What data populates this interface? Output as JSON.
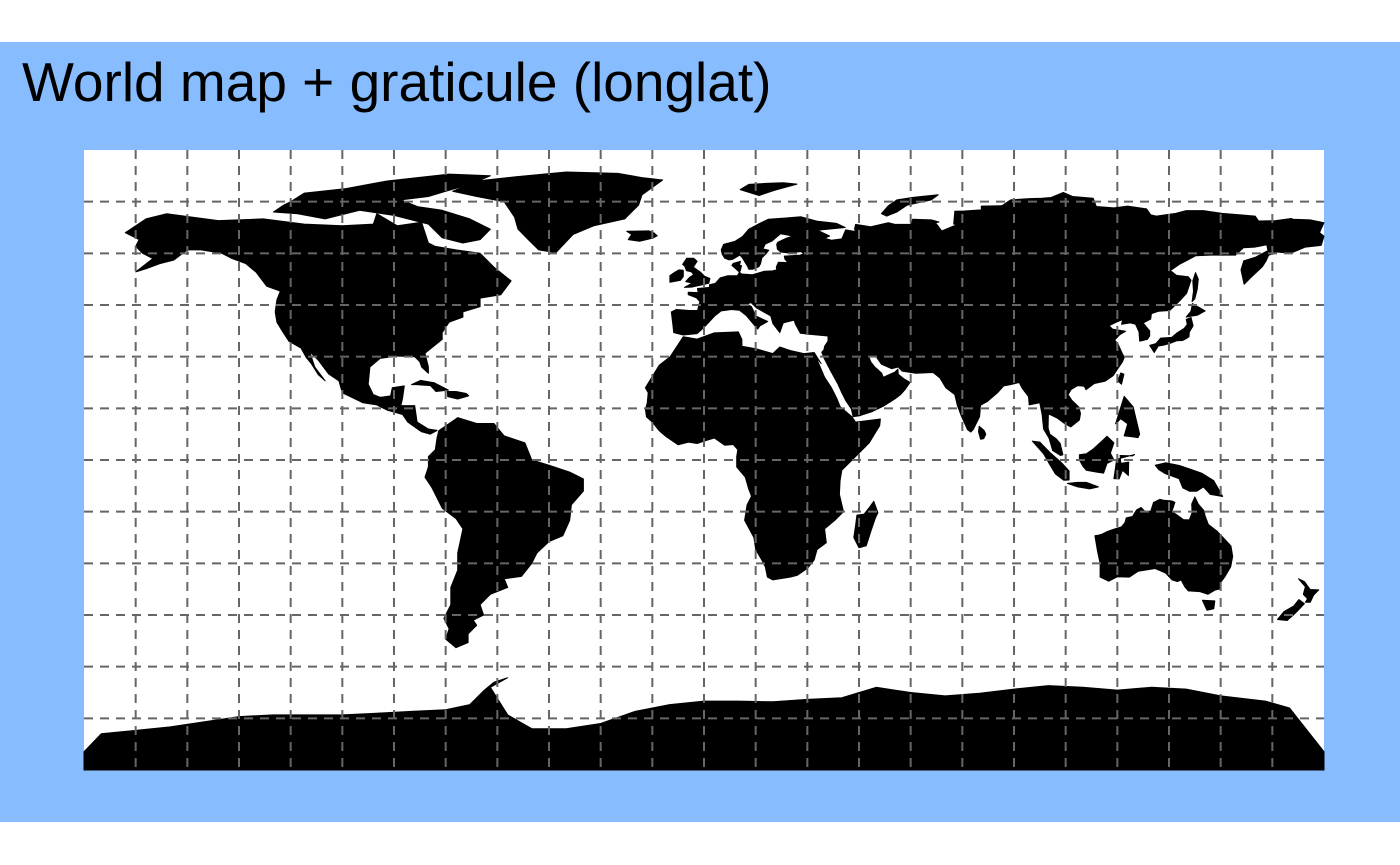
{
  "title": "World map + graticule (longlat)",
  "map": {
    "projection": "longlat",
    "extent": {
      "lon": [
        -180,
        180
      ],
      "lat": [
        -90,
        90
      ]
    },
    "graticule": {
      "spacing_degrees": 15,
      "style": "dashed"
    },
    "colors": {
      "background": "#87bcff",
      "ocean": "#ffffff",
      "land": "#000000",
      "graticule": "#666666"
    },
    "land_regions": [
      "north-america",
      "greenland",
      "canadian-arctic-islands",
      "south-america",
      "africa",
      "madagascar",
      "eurasia",
      "arabian-peninsula",
      "indian-subcontinent",
      "sri-lanka",
      "japan",
      "taiwan",
      "philippines",
      "borneo",
      "sumatra",
      "java",
      "sulawesi",
      "new-guinea",
      "australia",
      "tasmania",
      "new-zealand",
      "british-isles",
      "iceland",
      "svalbard",
      "novaya-zemlya",
      "sakhalin",
      "cuba",
      "hispaniola",
      "antarctica",
      "antarctic-peninsula"
    ]
  }
}
